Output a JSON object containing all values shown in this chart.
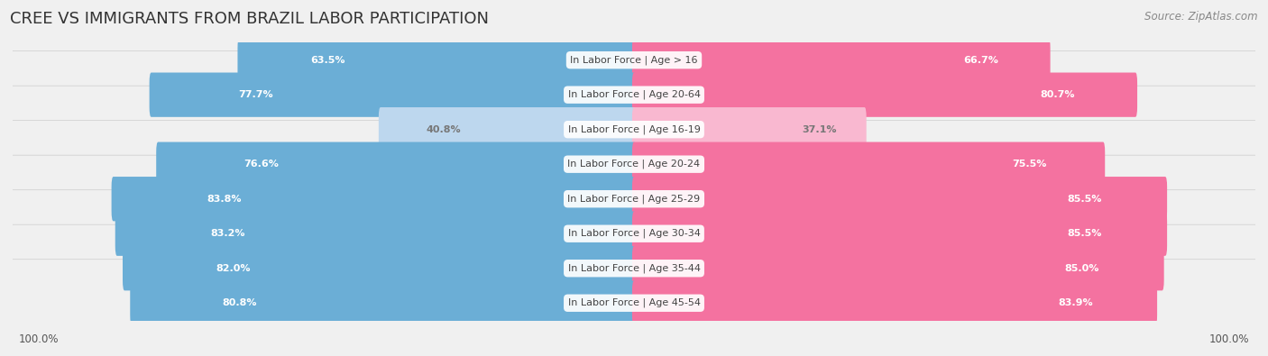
{
  "title": "Cree vs Immigrants from Brazil Labor Participation",
  "source": "Source: ZipAtlas.com",
  "categories": [
    "In Labor Force | Age > 16",
    "In Labor Force | Age 20-64",
    "In Labor Force | Age 16-19",
    "In Labor Force | Age 20-24",
    "In Labor Force | Age 25-29",
    "In Labor Force | Age 30-34",
    "In Labor Force | Age 35-44",
    "In Labor Force | Age 45-54"
  ],
  "cree_values": [
    63.5,
    77.7,
    40.8,
    76.6,
    83.8,
    83.2,
    82.0,
    80.8
  ],
  "brazil_values": [
    66.7,
    80.7,
    37.1,
    75.5,
    85.5,
    85.5,
    85.0,
    83.9
  ],
  "cree_color": "#6BAED6",
  "cree_color_light": "#BDD7EE",
  "brazil_color": "#F472A0",
  "brazil_color_light": "#F9B8D0",
  "background_color": "#F0F0F0",
  "row_bg_color": "#E0E0E0",
  "row_bg_light": "#F8F8F8",
  "title_fontsize": 13,
  "label_fontsize": 8.0,
  "value_fontsize": 8.0,
  "legend_fontsize": 9,
  "footer_value": "100.0%"
}
